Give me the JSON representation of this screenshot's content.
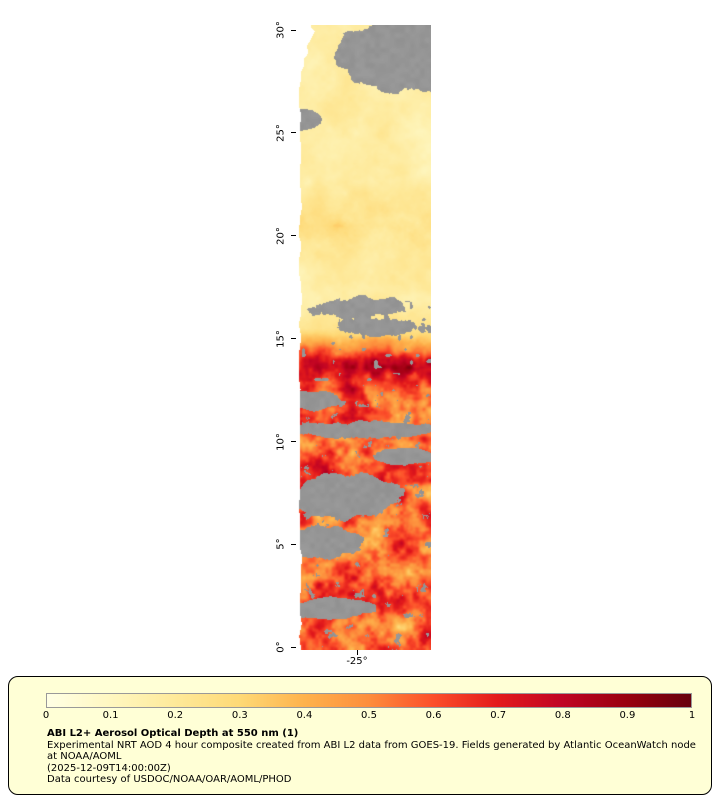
{
  "map": {
    "axis": {
      "lat_ticks": [
        {
          "lat": 30,
          "label": "30°"
        },
        {
          "lat": 25,
          "label": "25°"
        },
        {
          "lat": 20,
          "label": "20°"
        },
        {
          "lat": 15,
          "label": "15°"
        },
        {
          "lat": 10,
          "label": "10°"
        },
        {
          "lat": 5,
          "label": "5°"
        },
        {
          "lat": 0,
          "label": "0°"
        }
      ],
      "lon_ticks": [
        {
          "lon": -25,
          "label": "-25°"
        }
      ]
    },
    "no_data_color": "#969696",
    "colormap_stops": [
      {
        "v": 0.0,
        "c": "#ffffe5"
      },
      {
        "v": 0.1,
        "c": "#fff7c0"
      },
      {
        "v": 0.2,
        "c": "#fee999"
      },
      {
        "v": 0.3,
        "c": "#fed976"
      },
      {
        "v": 0.4,
        "c": "#feb24c"
      },
      {
        "v": 0.5,
        "c": "#fd8d3c"
      },
      {
        "v": 0.6,
        "c": "#fc4e2a"
      },
      {
        "v": 0.7,
        "c": "#e31a1c"
      },
      {
        "v": 0.8,
        "c": "#c00424"
      },
      {
        "v": 0.9,
        "c": "#99000f"
      },
      {
        "v": 1.0,
        "c": "#67000d"
      }
    ],
    "field": {
      "north": {
        "base": 0.05,
        "var": 0.16
      },
      "mid_band": {
        "lat_center": 20.5,
        "half_width": 2.2,
        "boost": 0.14
      },
      "transition": {
        "lat_min": 14.0,
        "lat_max": 15.5
      },
      "south": {
        "base": 0.28,
        "var": 0.6
      },
      "ridge": {
        "lat_center": 13.6,
        "half_width": 1.6,
        "boost": 0.3
      }
    },
    "clouds": {
      "ellipses": [
        {
          "lat": 28.8,
          "xf": 0.82,
          "rlat": 1.75,
          "rxf": 0.55,
          "rough": 0.9
        },
        {
          "lat": 25.7,
          "xf": 0.04,
          "rlat": 0.55,
          "rxf": 0.13,
          "rough": 0.8
        },
        {
          "lat": 16.5,
          "xf": 0.45,
          "rlat": 0.5,
          "rxf": 0.4,
          "rough": 2.4
        },
        {
          "lat": 15.6,
          "xf": 0.6,
          "rlat": 0.45,
          "rxf": 0.35,
          "rough": 2.2
        },
        {
          "lat": 12.0,
          "xf": 0.12,
          "rlat": 0.45,
          "rxf": 0.22,
          "rough": 1.4
        },
        {
          "lat": 10.6,
          "xf": 0.5,
          "rlat": 0.4,
          "rxf": 0.5,
          "rough": 2.0
        },
        {
          "lat": 9.3,
          "xf": 0.8,
          "rlat": 0.42,
          "rxf": 0.24,
          "rough": 1.1
        },
        {
          "lat": 7.4,
          "xf": 0.38,
          "rlat": 1.05,
          "rxf": 0.4,
          "rough": 1.3
        },
        {
          "lat": 5.1,
          "xf": 0.2,
          "rlat": 0.75,
          "rxf": 0.3,
          "rough": 1.3
        },
        {
          "lat": 1.9,
          "xf": 0.24,
          "rlat": 0.55,
          "rxf": 0.3,
          "rough": 1.3
        }
      ],
      "south_speckle_threshold": 0.72,
      "mid_speckle_threshold": 0.86
    }
  },
  "legend": {
    "background": "#ffffd6",
    "ticks": [
      "0",
      "0.1",
      "0.2",
      "0.3",
      "0.4",
      "0.5",
      "0.6",
      "0.7",
      "0.8",
      "0.9",
      "1"
    ],
    "title": "ABI L2+ Aerosol Optical Depth at 550 nm (1)",
    "description": "Experimental NRT AOD 4 hour composite created from ABI L2 data from GOES-19. Fields generated by Atlantic OceanWatch node at NOAA/AOML",
    "timestamp": "(2025-12-09T14:00:00Z)",
    "credit": "Data courtesy of USDOC/NOAA/OAR/AOML/PHOD"
  },
  "chart_data": {
    "type": "heatmap",
    "title": "ABI L2+ Aerosol Optical Depth at 550 nm (1)",
    "value_range": [
      0,
      1
    ],
    "colorbar_ticks": [
      0,
      0.1,
      0.2,
      0.3,
      0.4,
      0.5,
      0.6,
      0.7,
      0.8,
      0.9,
      1
    ],
    "lat_ticks_deg": [
      30,
      25,
      20,
      15,
      10,
      5,
      0
    ],
    "lon_ticks_deg": [
      -25
    ],
    "regions": [
      {
        "lat_range": [
          24,
          30
        ],
        "aod_approx": [
          0.05,
          0.2
        ],
        "note": "pale yellow, large gray no-data cloud area in the north-east corner"
      },
      {
        "lat_range": [
          15,
          24
        ],
        "aod_approx": [
          0.1,
          0.35
        ],
        "note": "pale yellow with light orange patches near 19-22 deg, small gray specks near 15-17 deg"
      },
      {
        "lat_range": [
          12.5,
          15
        ],
        "aod_approx": [
          0.3,
          0.95
        ],
        "note": "sharp transition band, dark red ridge strongest on the east side"
      },
      {
        "lat_range": [
          0,
          12.5
        ],
        "aod_approx": [
          0.4,
          1.0
        ],
        "note": "heavy dust plume, oranges to dark reds with many gray cloud gaps"
      }
    ],
    "no_data_color": "#969696"
  }
}
